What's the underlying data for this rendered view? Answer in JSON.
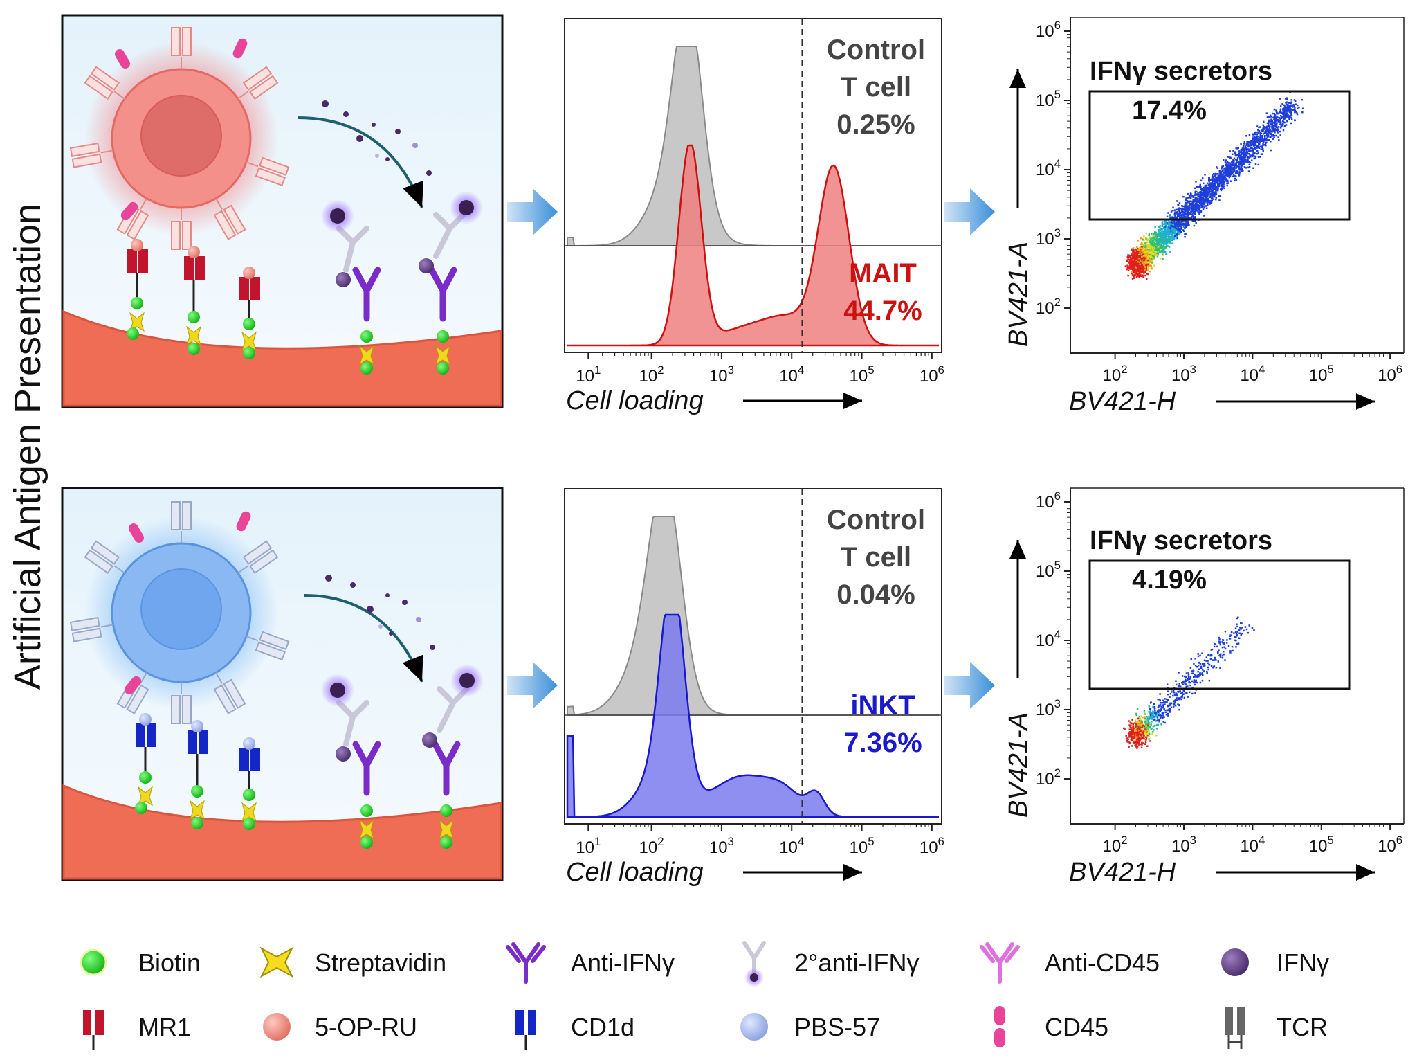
{
  "side_title": "Artificial Antigen Presentation",
  "rows": [
    {
      "histogram": {
        "control_label_1": "Control",
        "control_label_2": "T cell",
        "control_pct": "0.25%",
        "cell_label": "MAIT",
        "cell_pct": "44.7%",
        "cell_color": "#cc1111",
        "fill_color": "#f08080",
        "xlabel": "Cell loading"
      },
      "scatter": {
        "gate_label": "IFNγ secretors",
        "gate_pct": "17.4%",
        "xlabel": "BV421-H",
        "ylabel": "BV421-A"
      }
    },
    {
      "histogram": {
        "control_label_1": "Control",
        "control_label_2": "T cell",
        "control_pct": "0.04%",
        "cell_label": "iNKT",
        "cell_pct": "7.36%",
        "cell_color": "#1a1acc",
        "fill_color": "#7b7bf0",
        "xlabel": "Cell loading"
      },
      "scatter": {
        "gate_label": "IFNγ secretors",
        "gate_pct": "4.19%",
        "xlabel": "BV421-H",
        "ylabel": "BV421-A"
      }
    }
  ],
  "hist_ticks": [
    {
      "base": "10",
      "exp": "1"
    },
    {
      "base": "10",
      "exp": "2"
    },
    {
      "base": "10",
      "exp": "3"
    },
    {
      "base": "10",
      "exp": "4"
    },
    {
      "base": "10",
      "exp": "5"
    },
    {
      "base": "10",
      "exp": "6"
    }
  ],
  "scatter_x_ticks": [
    {
      "base": "10",
      "exp": "2"
    },
    {
      "base": "10",
      "exp": "3"
    },
    {
      "base": "10",
      "exp": "4"
    },
    {
      "base": "10",
      "exp": "5"
    },
    {
      "base": "10",
      "exp": "6"
    }
  ],
  "scatter_y_ticks": [
    {
      "base": "10",
      "exp": "2"
    },
    {
      "base": "10",
      "exp": "3"
    },
    {
      "base": "10",
      "exp": "4"
    },
    {
      "base": "10",
      "exp": "5"
    },
    {
      "base": "10",
      "exp": "6"
    }
  ],
  "legend": [
    {
      "label": "Biotin",
      "icon": "biotin-icon"
    },
    {
      "label": "Streptavidin",
      "icon": "streptavidin-icon"
    },
    {
      "label": "Anti-IFNγ",
      "icon": "anti-ifng-icon"
    },
    {
      "label": "2°anti-IFNγ",
      "icon": "secondary-anti-ifng-icon"
    },
    {
      "label": "Anti-CD45",
      "icon": "anti-cd45-icon"
    },
    {
      "label": "IFNγ",
      "icon": "ifng-icon"
    },
    {
      "label": "MR1",
      "icon": "mr1-icon"
    },
    {
      "label": "5-OP-RU",
      "icon": "5-op-ru-icon"
    },
    {
      "label": "CD1d",
      "icon": "cd1d-icon"
    },
    {
      "label": "PBS-57",
      "icon": "pbs-57-icon"
    },
    {
      "label": "CD45",
      "icon": "cd45-icon"
    },
    {
      "label": "TCR",
      "icon": "tcr-icon"
    }
  ],
  "colors": {
    "arrow": "#5aa3e0",
    "control_fill": "#c8c8c8",
    "mait_cell": "#f08a86",
    "inkt_cell": "#7fb0f0",
    "membrane": "#f07a60",
    "panel_bg": "#e6f3fb"
  }
}
